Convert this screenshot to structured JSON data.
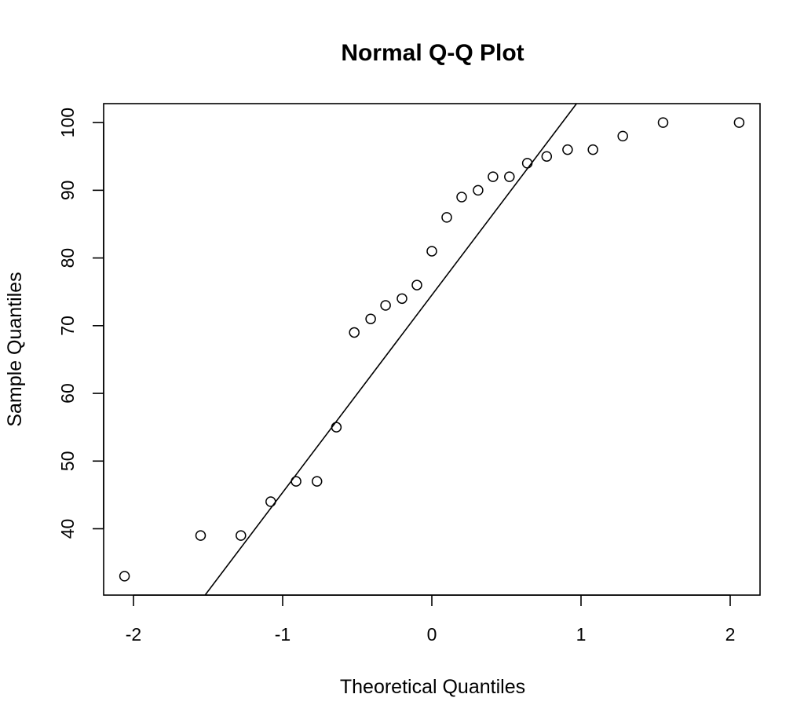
{
  "chart_data": {
    "type": "scatter",
    "title": "Normal Q-Q Plot",
    "xlabel": "Theoretical Quantiles",
    "ylabel": "Sample Quantiles",
    "xlim": [
      -2.2,
      2.2
    ],
    "ylim": [
      30.2,
      102.8
    ],
    "xticks": [
      -2,
      -1,
      0,
      1,
      2
    ],
    "yticks": [
      40,
      50,
      60,
      70,
      80,
      90,
      100
    ],
    "xtick_labels": [
      "-2",
      "-1",
      "0",
      "1",
      "2"
    ],
    "ytick_labels": [
      "40",
      "50",
      "60",
      "70",
      "80",
      "90",
      "100"
    ],
    "grid": false,
    "legend": "none",
    "marker": "open-circle",
    "points": [
      {
        "x": -2.06,
        "y": 33
      },
      {
        "x": -1.55,
        "y": 39
      },
      {
        "x": -1.28,
        "y": 39
      },
      {
        "x": -1.08,
        "y": 44
      },
      {
        "x": -0.91,
        "y": 47
      },
      {
        "x": -0.77,
        "y": 47
      },
      {
        "x": -0.64,
        "y": 55
      },
      {
        "x": -0.52,
        "y": 69
      },
      {
        "x": -0.41,
        "y": 71
      },
      {
        "x": -0.31,
        "y": 73
      },
      {
        "x": -0.2,
        "y": 74
      },
      {
        "x": -0.1,
        "y": 76
      },
      {
        "x": 0.0,
        "y": 81
      },
      {
        "x": 0.1,
        "y": 86
      },
      {
        "x": 0.2,
        "y": 89
      },
      {
        "x": 0.31,
        "y": 90
      },
      {
        "x": 0.41,
        "y": 92
      },
      {
        "x": 0.52,
        "y": 92
      },
      {
        "x": 0.64,
        "y": 94
      },
      {
        "x": 0.77,
        "y": 95
      },
      {
        "x": 0.91,
        "y": 96
      },
      {
        "x": 1.08,
        "y": 96
      },
      {
        "x": 1.28,
        "y": 98
      },
      {
        "x": 1.55,
        "y": 100
      },
      {
        "x": 2.06,
        "y": 100
      }
    ],
    "reference_line": {
      "x1": -1.52,
      "y1": 30.2,
      "x2": 0.97,
      "y2": 102.8
    }
  }
}
